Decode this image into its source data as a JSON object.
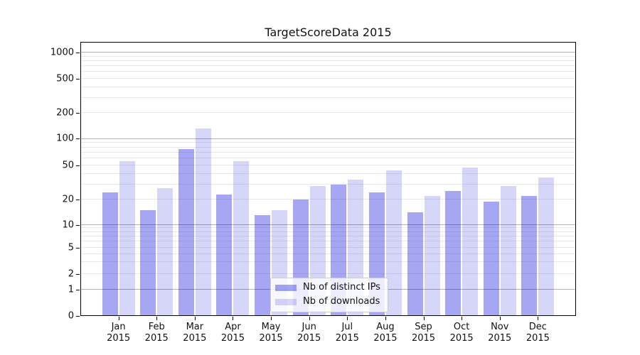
{
  "title": "TargetScoreData 2015",
  "chart_data": {
    "type": "bar",
    "title": "TargetScoreData 2015",
    "categories": [
      "Jan",
      "Feb",
      "Mar",
      "Apr",
      "May",
      "Jun",
      "Jul",
      "Aug",
      "Sep",
      "Oct",
      "Nov",
      "Dec"
    ],
    "year_label": "2015",
    "series": [
      {
        "name": "Nb of distinct IPs",
        "values": [
          24,
          15,
          76,
          23,
          13,
          20,
          30,
          24,
          14,
          25,
          19,
          22
        ],
        "color": "rgba(0,0,220,0.35)",
        "color_hex_on_white": "#a6a6f3"
      },
      {
        "name": "Nb of downloads",
        "values": [
          56,
          27,
          132,
          56,
          15,
          29,
          34,
          44,
          22,
          47,
          29,
          36
        ],
        "color": "rgba(0,0,220,0.16)",
        "color_hex_on_white": "#dcdcf9"
      }
    ],
    "y_ticks": [
      0,
      1,
      2,
      5,
      10,
      20,
      50,
      100,
      200,
      500,
      1000
    ],
    "yscale": "log-like (1-2-5 sequence, 0 at baseline)",
    "xlabel": "",
    "ylabel": "",
    "grid": "horizontal, major gray lines at powers of 10, faint minor log lines",
    "legend_position": "lower center",
    "colors": {
      "major_grid": "#b1b1b1",
      "minor_grid": "#e9e9e9",
      "spine": "#000000",
      "text": "#111111",
      "legend_border": "#cccccc",
      "legend_bg": "rgba(255,255,255,0.8)"
    }
  }
}
